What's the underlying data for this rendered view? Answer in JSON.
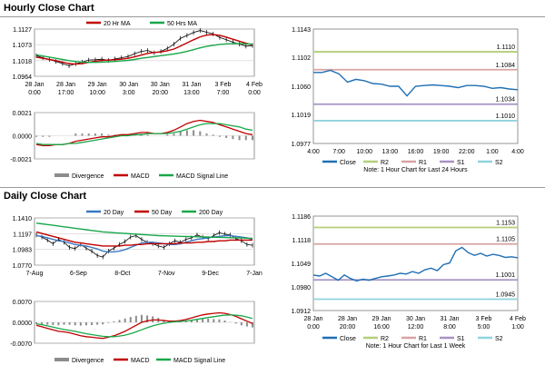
{
  "colors": {
    "close": "#1f6fb4",
    "r2": "#b5cf7a",
    "r1": "#d9a3a3",
    "s1": "#a593c2",
    "s2": "#8fd3de",
    "ma_red": "#c00000",
    "ma_green": "#19a74a",
    "ma_blue": "#3a78c2",
    "macd_green": "#19a74a",
    "macd_red": "#c00000",
    "divergence": "#8c8c8c",
    "price": "#000000"
  },
  "sections": {
    "hourly": "Hourly Close Chart",
    "daily": "Daily Close Chart"
  },
  "chart_data": [
    {
      "id": "hourly-price",
      "type": "line",
      "title": "",
      "legend": [
        "20 Hr MA",
        "50 Hrs MA"
      ],
      "yticks": [
        "1.1127",
        "1.1073",
        "1.1018",
        "1.0964"
      ],
      "yvals": [
        1.1127,
        1.1073,
        1.1018,
        1.0964
      ],
      "ylim": [
        1.0964,
        1.1127
      ],
      "xticks": [
        [
          "28 Jan",
          "0:00"
        ],
        [
          "28 Jan",
          "17:00"
        ],
        [
          "29 Jan",
          "10:00"
        ],
        [
          "30 Jan",
          "3:00"
        ],
        [
          "30 Jan",
          "20:00"
        ],
        [
          "31 Jan",
          "13:00"
        ],
        [
          "3 Feb",
          "7:00"
        ],
        [
          "4 Feb",
          "0:00"
        ]
      ],
      "series": [
        {
          "name": "Close",
          "values": [
            1.1035,
            1.1028,
            1.1022,
            1.1015,
            1.1008,
            1.1,
            1.1007,
            1.1013,
            1.102,
            1.1021,
            1.1023,
            1.1019,
            1.1024,
            1.1028,
            1.1032,
            1.1042,
            1.105,
            1.1053,
            1.1045,
            1.105,
            1.106,
            1.1075,
            1.1095,
            1.1105,
            1.1115,
            1.1122,
            1.1116,
            1.111,
            1.1098,
            1.109,
            1.1082,
            1.1075,
            1.1068,
            1.107
          ]
        },
        {
          "name": "20 Hr MA",
          "values": [
            1.103,
            1.1026,
            1.1022,
            1.1018,
            1.1013,
            1.1008,
            1.1006,
            1.1008,
            1.1012,
            1.1016,
            1.1019,
            1.102,
            1.1021,
            1.1023,
            1.1026,
            1.1031,
            1.1037,
            1.1043,
            1.1046,
            1.1048,
            1.1052,
            1.1058,
            1.1068,
            1.1079,
            1.109,
            1.11,
            1.1106,
            1.1108,
            1.1105,
            1.1099,
            1.1092,
            1.1085,
            1.1078,
            1.1072
          ]
        },
        {
          "name": "50 Hrs MA",
          "values": [
            1.1038,
            1.1034,
            1.103,
            1.1026,
            1.1022,
            1.1018,
            1.1015,
            1.1013,
            1.1012,
            1.1012,
            1.1013,
            1.1014,
            1.1015,
            1.1017,
            1.1019,
            1.1022,
            1.1026,
            1.1029,
            1.1032,
            1.1035,
            1.1038,
            1.1041,
            1.1045,
            1.105,
            1.1056,
            1.1062,
            1.1067,
            1.1071,
            1.1074,
            1.1076,
            1.1077,
            1.1077,
            1.1076,
            1.1075
          ]
        }
      ]
    },
    {
      "id": "hourly-macd",
      "type": "line",
      "legend": [
        "Divergence",
        "MACD",
        "MACD Signal Line"
      ],
      "yticks": [
        "0.0021",
        "0.0000",
        "-0.0021"
      ],
      "yvals": [
        0.0021,
        0,
        -0.0021
      ],
      "ylim": [
        -0.0021,
        0.0021
      ],
      "series": [
        {
          "name": "MACD",
          "values": [
            -0.0008,
            -0.0009,
            -0.0009,
            -0.0008,
            -0.0008,
            -0.0007,
            -0.0005,
            -0.0004,
            -0.0003,
            -0.0002,
            -0.0001,
            -0.0001,
            0.0,
            0.0001,
            0.0001,
            0.0002,
            0.0003,
            0.0003,
            0.0002,
            0.0002,
            0.0003,
            0.0005,
            0.0008,
            0.0011,
            0.0013,
            0.0014,
            0.0013,
            0.0012,
            0.001,
            0.0008,
            0.0006,
            0.0004,
            0.0002,
            0.0001
          ]
        },
        {
          "name": "MACD Signal Line",
          "values": [
            -0.0007,
            -0.0008,
            -0.0008,
            -0.0008,
            -0.0008,
            -0.0007,
            -0.0007,
            -0.0006,
            -0.0005,
            -0.0004,
            -0.0003,
            -0.0002,
            -0.0001,
            0.0,
            0.0,
            0.0001,
            0.0001,
            0.0002,
            0.0002,
            0.0002,
            0.0002,
            0.0003,
            0.0004,
            0.0006,
            0.0008,
            0.001,
            0.0011,
            0.0011,
            0.0011,
            0.001,
            0.0009,
            0.0008,
            0.0006,
            0.0005
          ]
        },
        {
          "name": "Divergence",
          "values": [
            -0.0001,
            -0.0001,
            -0.0001,
            0.0,
            0.0,
            0.0,
            0.0002,
            0.0002,
            0.0002,
            0.0002,
            0.0002,
            0.0001,
            0.0001,
            0.0001,
            0.0001,
            0.0001,
            0.0002,
            0.0001,
            0.0,
            0.0,
            0.0001,
            0.0002,
            0.0004,
            0.0005,
            0.0005,
            0.0004,
            0.0002,
            0.0001,
            -0.0001,
            -0.0002,
            -0.0003,
            -0.0004,
            -0.0004,
            -0.0004
          ]
        }
      ]
    },
    {
      "id": "hourly-pivot",
      "type": "line",
      "legend": [
        "Close",
        "R2",
        "R1",
        "S1",
        "S2"
      ],
      "note": "Note: 1 Hour Chart for Last 24 Hours",
      "yticks": [
        "1.1143",
        "1.1102",
        "1.1060",
        "1.1019",
        "1.0977"
      ],
      "yvals": [
        1.1143,
        1.1102,
        1.106,
        1.1019,
        1.0977
      ],
      "ylim": [
        1.0977,
        1.1143
      ],
      "xticks": [
        "4:00",
        "7:00",
        "10:00",
        "13:00",
        "16:00",
        "19:00",
        "22:00",
        "1:00",
        "4:00"
      ],
      "levels": [
        {
          "name": "R2",
          "value": 1.111,
          "label": "1.1110"
        },
        {
          "name": "R1",
          "value": 1.1084,
          "label": "1.1084"
        },
        {
          "name": "S1",
          "value": 1.1034,
          "label": "1.1034"
        },
        {
          "name": "S2",
          "value": 1.101,
          "label": "1.1010"
        }
      ],
      "series": [
        {
          "name": "Close",
          "values": [
            1.108,
            1.108,
            1.1083,
            1.1078,
            1.1066,
            1.107,
            1.1068,
            1.1064,
            1.1063,
            1.106,
            1.106,
            1.1046,
            1.106,
            1.1061,
            1.1062,
            1.1061,
            1.106,
            1.1058,
            1.1061,
            1.1061,
            1.106,
            1.1057,
            1.1058,
            1.1056,
            1.1055
          ]
        }
      ]
    },
    {
      "id": "daily-price",
      "type": "line",
      "legend": [
        "20 Day",
        "50 Day",
        "200 Day"
      ],
      "yticks": [
        "1.1410",
        "1.1197",
        "1.0983",
        "1.0770"
      ],
      "yvals": [
        1.141,
        1.1197,
        1.0983,
        1.077
      ],
      "ylim": [
        1.077,
        1.141
      ],
      "xticks": [
        "7-Aug",
        "6-Sep",
        "8-Oct",
        "7-Nov",
        "9-Dec",
        "7-Jan"
      ],
      "series": [
        {
          "name": "Close",
          "values": [
            1.118,
            1.115,
            1.111,
            1.106,
            1.112,
            1.108,
            1.101,
            1.0995,
            1.105,
            1.1,
            1.096,
            1.09,
            1.088,
            1.096,
            1.1,
            1.105,
            1.109,
            1.115,
            1.117,
            1.112,
            1.108,
            1.106,
            1.103,
            1.101,
            1.106,
            1.11,
            1.108,
            1.112,
            1.114,
            1.118,
            1.115,
            1.113,
            1.117,
            1.121,
            1.119,
            1.118,
            1.113,
            1.11,
            1.105,
            1.104
          ]
        },
        {
          "name": "20 Day",
          "values": [
            1.117,
            1.116,
            1.114,
            1.112,
            1.11,
            1.109,
            1.107,
            1.105,
            1.104,
            1.103,
            1.101,
            1.099,
            1.096,
            1.095,
            1.095,
            1.096,
            1.098,
            1.101,
            1.104,
            1.107,
            1.108,
            1.108,
            1.107,
            1.106,
            1.105,
            1.105,
            1.106,
            1.108,
            1.11,
            1.112,
            1.113,
            1.114,
            1.115,
            1.116,
            1.117,
            1.117,
            1.116,
            1.115,
            1.114,
            1.112
          ]
        },
        {
          "name": "50 Day",
          "values": [
            1.122,
            1.12,
            1.118,
            1.116,
            1.114,
            1.112,
            1.11,
            1.108,
            1.107,
            1.106,
            1.105,
            1.104,
            1.103,
            1.103,
            1.103,
            1.103,
            1.104,
            1.104,
            1.105,
            1.105,
            1.106,
            1.106,
            1.106,
            1.106,
            1.106,
            1.106,
            1.107,
            1.107,
            1.107,
            1.108,
            1.108,
            1.109,
            1.109,
            1.11,
            1.11,
            1.111,
            1.111,
            1.111,
            1.111,
            1.111
          ]
        },
        {
          "name": "200 Day",
          "values": [
            1.134,
            1.133,
            1.132,
            1.131,
            1.13,
            1.129,
            1.128,
            1.127,
            1.126,
            1.125,
            1.124,
            1.123,
            1.122,
            1.1215,
            1.121,
            1.1205,
            1.12,
            1.1195,
            1.119,
            1.1185,
            1.118,
            1.1175,
            1.117,
            1.1168,
            1.1165,
            1.1162,
            1.116,
            1.1158,
            1.1156,
            1.1154,
            1.1152,
            1.115,
            1.1148,
            1.1146,
            1.1144,
            1.1142,
            1.114,
            1.1138,
            1.1136,
            1.1134
          ]
        }
      ]
    },
    {
      "id": "daily-macd",
      "type": "line",
      "legend": [
        "Divergence",
        "MACD",
        "MACD Signal Line"
      ],
      "yticks": [
        "0.0070",
        "0.0000",
        "-0.0070"
      ],
      "yvals": [
        0.007,
        0,
        -0.007
      ],
      "ylim": [
        -0.007,
        0.007
      ],
      "series": [
        {
          "name": "MACD",
          "values": [
            -0.001,
            -0.0015,
            -0.002,
            -0.0025,
            -0.003,
            -0.0032,
            -0.0035,
            -0.004,
            -0.0045,
            -0.0048,
            -0.005,
            -0.0052,
            -0.0054,
            -0.005,
            -0.0045,
            -0.0038,
            -0.003,
            -0.002,
            -0.001,
            0.0,
            0.0005,
            0.0008,
            0.0008,
            0.0006,
            0.0004,
            0.0004,
            0.0006,
            0.001,
            0.0015,
            0.002,
            0.0025,
            0.0028,
            0.003,
            0.0032,
            0.003,
            0.0026,
            0.002,
            0.0012,
            0.0004,
            -0.0004
          ]
        },
        {
          "name": "MACD Signal Line",
          "values": [
            -0.0005,
            -0.0008,
            -0.0012,
            -0.0016,
            -0.002,
            -0.0024,
            -0.0027,
            -0.003,
            -0.0034,
            -0.0038,
            -0.0041,
            -0.0044,
            -0.0047,
            -0.0048,
            -0.0048,
            -0.0046,
            -0.0043,
            -0.0038,
            -0.0032,
            -0.0025,
            -0.0018,
            -0.0012,
            -0.0007,
            -0.0003,
            0.0,
            0.0002,
            0.0003,
            0.0005,
            0.0007,
            0.001,
            0.0013,
            0.0016,
            0.0019,
            0.0022,
            0.0024,
            0.0025,
            0.0024,
            0.0022,
            0.0018,
            0.0013
          ]
        },
        {
          "name": "Divergence",
          "values": [
            -0.0005,
            -0.0007,
            -0.0008,
            -0.0009,
            -0.001,
            -0.0008,
            -0.0008,
            -0.001,
            -0.0011,
            -0.001,
            -0.0009,
            -0.0008,
            -0.0007,
            -0.0002,
            0.0003,
            0.0008,
            0.0013,
            0.0018,
            0.0022,
            0.0025,
            0.0023,
            0.002,
            0.0015,
            0.0009,
            0.0004,
            0.0002,
            0.0003,
            0.0005,
            0.0008,
            0.001,
            0.0012,
            0.0012,
            0.0011,
            0.001,
            0.0006,
            0.0001,
            -0.0004,
            -0.001,
            -0.0014,
            -0.0017
          ]
        }
      ]
    },
    {
      "id": "daily-pivot",
      "type": "line",
      "legend": [
        "Close",
        "R2",
        "R1",
        "S1",
        "S2"
      ],
      "note": "Note: 1 Hour Chart for Last 1 Week",
      "yticks": [
        "1.1186",
        "1.1118",
        "1.1049",
        "1.0980",
        "1.0912"
      ],
      "yvals": [
        1.1186,
        1.1118,
        1.1049,
        1.098,
        1.0912
      ],
      "ylim": [
        1.0912,
        1.1186
      ],
      "xticks": [
        [
          "28 Jan",
          "0:00"
        ],
        [
          "28 Jan",
          "20:00"
        ],
        [
          "29 Jan",
          "16:00"
        ],
        [
          "30 Jan",
          "12:00"
        ],
        [
          "31 Jan",
          "8:00"
        ],
        [
          "3 Feb",
          "5:00"
        ],
        [
          "4 Feb",
          "1:00"
        ]
      ],
      "levels": [
        {
          "name": "R2",
          "value": 1.1153,
          "label": "1.1153"
        },
        {
          "name": "R1",
          "value": 1.1105,
          "label": "1.1105"
        },
        {
          "name": "S1",
          "value": 1.1001,
          "label": "1.1001"
        },
        {
          "name": "S2",
          "value": 1.0945,
          "label": "1.0945"
        }
      ],
      "series": [
        {
          "name": "Close",
          "values": [
            1.1015,
            1.1012,
            1.102,
            1.101,
            1.1,
            1.1015,
            1.1005,
            1.0998,
            1.1003,
            1.1,
            1.1005,
            1.101,
            1.1012,
            1.1015,
            1.102,
            1.1018,
            1.1025,
            1.102,
            1.103,
            1.1035,
            1.1028,
            1.1045,
            1.105,
            1.1085,
            1.1095,
            1.108,
            1.1072,
            1.1078,
            1.107,
            1.1075,
            1.1072,
            1.1066,
            1.1068,
            1.1065
          ]
        }
      ]
    }
  ]
}
